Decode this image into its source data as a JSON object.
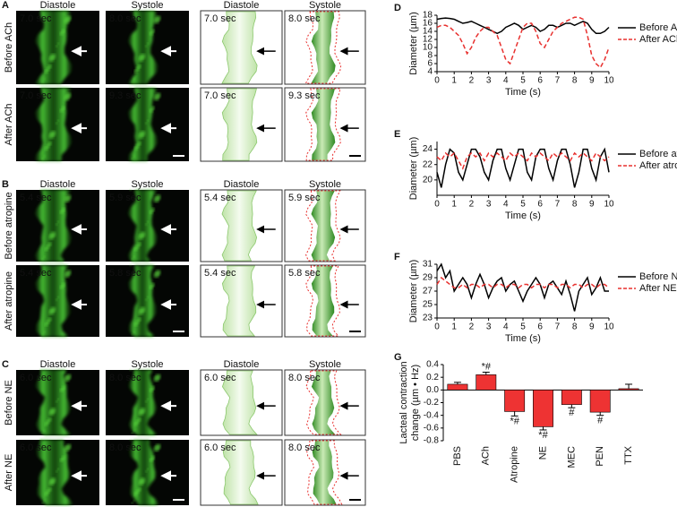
{
  "panels": [
    {
      "letter": "A",
      "columns": [
        "Diastole",
        "Systole",
        "Diastole",
        "Systole"
      ],
      "rows": [
        {
          "label": "Before ACh",
          "times": [
            "7.0 sec",
            "8.0 sec",
            "7.0 sec",
            "8.0 sec"
          ]
        },
        {
          "label": "After ACh",
          "times": [
            "7.0 sec",
            "9.3 sec",
            "7.0 sec",
            "9.3 sec"
          ]
        }
      ]
    },
    {
      "letter": "B",
      "columns": [
        "Diastole",
        "Systole",
        "Diastole",
        "Systole"
      ],
      "rows": [
        {
          "label": "Before atropine",
          "times": [
            "5.4 sec",
            "5.9 sec",
            "5.4 sec",
            "5.9 sec"
          ]
        },
        {
          "label": "After atropine",
          "times": [
            "5.4 sec",
            "5.8 sec",
            "5.4 sec",
            "5.8 sec"
          ]
        }
      ]
    },
    {
      "letter": "C",
      "columns": [
        "Diastole",
        "Systole",
        "Diastole",
        "Systole"
      ],
      "rows": [
        {
          "label": "Before NE",
          "times": [
            "6.0 sec",
            "8.0 sec",
            "6.0 sec",
            "8.0 sec"
          ]
        },
        {
          "label": "After NE",
          "times": [
            "6.0 sec",
            "8.0 sec",
            "6.0 sec",
            "8.0 sec"
          ]
        }
      ]
    }
  ],
  "chart_data": [
    {
      "type": "line",
      "label": "D",
      "xlabel": "Time (s)",
      "ylabel": "Diameter (µm)",
      "xlim": [
        0,
        10
      ],
      "xticks": [
        0,
        1,
        2,
        3,
        4,
        5,
        6,
        7,
        8,
        9,
        10
      ],
      "ylim": [
        4,
        18
      ],
      "yticks": [
        4,
        6,
        8,
        10,
        12,
        14,
        16,
        18
      ],
      "x": [
        0,
        0.25,
        0.5,
        0.75,
        1,
        1.25,
        1.5,
        1.75,
        2,
        2.25,
        2.5,
        2.75,
        3,
        3.25,
        3.5,
        3.75,
        4,
        4.25,
        4.5,
        4.75,
        5,
        5.25,
        5.5,
        5.75,
        6,
        6.25,
        6.5,
        6.75,
        7,
        7.25,
        7.5,
        7.75,
        8,
        8.25,
        8.5,
        8.75,
        9,
        9.25,
        9.5,
        9.75,
        10
      ],
      "series": [
        {
          "name": "Before ACh",
          "color": "#000000",
          "dashed": false,
          "values": [
            17,
            17.2,
            17.3,
            17.2,
            17,
            16.5,
            16,
            16.2,
            16.5,
            16,
            15.5,
            15,
            14.5,
            14,
            13.5,
            14,
            15,
            15.5,
            16,
            15.5,
            14.5,
            15,
            15.5,
            15,
            14,
            14.5,
            15.5,
            15.5,
            15,
            15.5,
            16,
            16,
            15.5,
            16,
            16.5,
            16,
            14.5,
            13.5,
            13.5,
            14,
            15
          ]
        },
        {
          "name": "After ACh",
          "color": "#e8312f",
          "dashed": true,
          "values": [
            15,
            15.5,
            15.5,
            15,
            14,
            13,
            11,
            8.5,
            10,
            12.5,
            14,
            15,
            15,
            14,
            13,
            10,
            7,
            6,
            9,
            12,
            15,
            16,
            16,
            14,
            11,
            10,
            12,
            14,
            15,
            16,
            16.5,
            17,
            17.5,
            17.5,
            17,
            13,
            8,
            6,
            5,
            7,
            10
          ]
        }
      ]
    },
    {
      "type": "line",
      "label": "E",
      "xlabel": "Time (s)",
      "ylabel": "Diameter (µm)",
      "xlim": [
        0,
        10
      ],
      "xticks": [
        0,
        1,
        2,
        3,
        4,
        5,
        6,
        7,
        8,
        9,
        10
      ],
      "ylim": [
        18,
        25
      ],
      "yticks": [
        20,
        22,
        24
      ],
      "x": [
        0,
        0.25,
        0.5,
        0.75,
        1,
        1.25,
        1.5,
        1.75,
        2,
        2.25,
        2.5,
        2.75,
        3,
        3.25,
        3.5,
        3.75,
        4,
        4.25,
        4.5,
        4.75,
        5,
        5.25,
        5.5,
        5.75,
        6,
        6.25,
        6.5,
        6.75,
        7,
        7.25,
        7.5,
        7.75,
        8,
        8.25,
        8.5,
        8.75,
        9,
        9.25,
        9.5,
        9.75,
        10
      ],
      "series": [
        {
          "name": "Before atropine",
          "color": "#000000",
          "dashed": false,
          "values": [
            21,
            19,
            22,
            24,
            23.5,
            21,
            20,
            22,
            24,
            24,
            23,
            21,
            20,
            22.5,
            24,
            24,
            21.5,
            20,
            22,
            24,
            24,
            21,
            20,
            23,
            24,
            24,
            21.5,
            20,
            22.5,
            24,
            24,
            22,
            19,
            21,
            24,
            24,
            21.5,
            20,
            23,
            24,
            21
          ]
        },
        {
          "name": "After atropine",
          "color": "#e8312f",
          "dashed": true,
          "values": [
            23,
            22.5,
            23.5,
            23,
            23.5,
            22.5,
            21.5,
            23,
            23.5,
            23,
            23.5,
            22.5,
            23.5,
            23,
            23.5,
            23,
            22.5,
            23.5,
            23,
            23.5,
            23,
            22.5,
            23.5,
            23,
            23.5,
            23,
            22.5,
            23.5,
            23,
            23.5,
            23,
            22.5,
            23.5,
            23,
            23.5,
            23,
            22.5,
            23.5,
            23,
            22.5,
            23
          ]
        }
      ]
    },
    {
      "type": "line",
      "label": "F",
      "xlabel": "Time (s)",
      "ylabel": "Diameter (µm)",
      "xlim": [
        0,
        10
      ],
      "xticks": [
        0,
        1,
        2,
        3,
        4,
        5,
        6,
        7,
        8,
        9,
        10
      ],
      "ylim": [
        23,
        31
      ],
      "yticks": [
        23,
        25,
        27,
        29,
        31
      ],
      "x": [
        0,
        0.25,
        0.5,
        0.75,
        1,
        1.25,
        1.5,
        1.75,
        2,
        2.25,
        2.5,
        2.75,
        3,
        3.25,
        3.5,
        3.75,
        4,
        4.25,
        4.5,
        4.75,
        5,
        5.25,
        5.5,
        5.75,
        6,
        6.25,
        6.5,
        6.75,
        7,
        7.25,
        7.5,
        7.75,
        8,
        8.25,
        8.5,
        8.75,
        9,
        9.25,
        9.5,
        9.75,
        10
      ],
      "series": [
        {
          "name": "Before NE",
          "color": "#000000",
          "dashed": false,
          "values": [
            30,
            31,
            29,
            30,
            27,
            28,
            29,
            28,
            26,
            28,
            29.5,
            28,
            26,
            27.5,
            28.5,
            29,
            27,
            28,
            28.5,
            27,
            25.5,
            27,
            28,
            29,
            28,
            26,
            28,
            28.5,
            27.5,
            26.5,
            28.5,
            26.5,
            24,
            27,
            28,
            29,
            26.5,
            27.5,
            29,
            27,
            27
          ]
        },
        {
          "name": "After NE",
          "color": "#e8312f",
          "dashed": true,
          "values": [
            28,
            29,
            28.5,
            28,
            27.5,
            27.5,
            28,
            27.5,
            28,
            28,
            27.5,
            28,
            28,
            27.5,
            28,
            28,
            27.5,
            28,
            28,
            27.5,
            28,
            28,
            27.5,
            28,
            28,
            27.5,
            28,
            28,
            27.5,
            28,
            28,
            27.5,
            28,
            28,
            27.5,
            28,
            28,
            27.5,
            28,
            28,
            27.5
          ]
        }
      ]
    },
    {
      "type": "bar",
      "label": "G",
      "ylabel": [
        "Lacteal contraction",
        "change (µm • Hz)"
      ],
      "categories": [
        "PBS",
        "ACh",
        "Atropine",
        "NE",
        "MEC",
        "PEN",
        "TTX"
      ],
      "values": [
        0.09,
        0.24,
        -0.34,
        -0.58,
        -0.23,
        -0.35,
        0.02
      ],
      "errors": [
        0.03,
        0.04,
        0.07,
        0.05,
        0.05,
        0.05,
        0.07
      ],
      "annotations": [
        null,
        "*#",
        "*#",
        "*#",
        "#",
        "#",
        null
      ],
      "color": "#ee3333",
      "ylim": [
        -0.8,
        0.4
      ],
      "yticks": [
        0.4,
        0.2,
        {
          "value": 0,
          "label": "0.0"
        },
        -0.2,
        -0.4,
        -0.6,
        -0.8
      ]
    }
  ]
}
